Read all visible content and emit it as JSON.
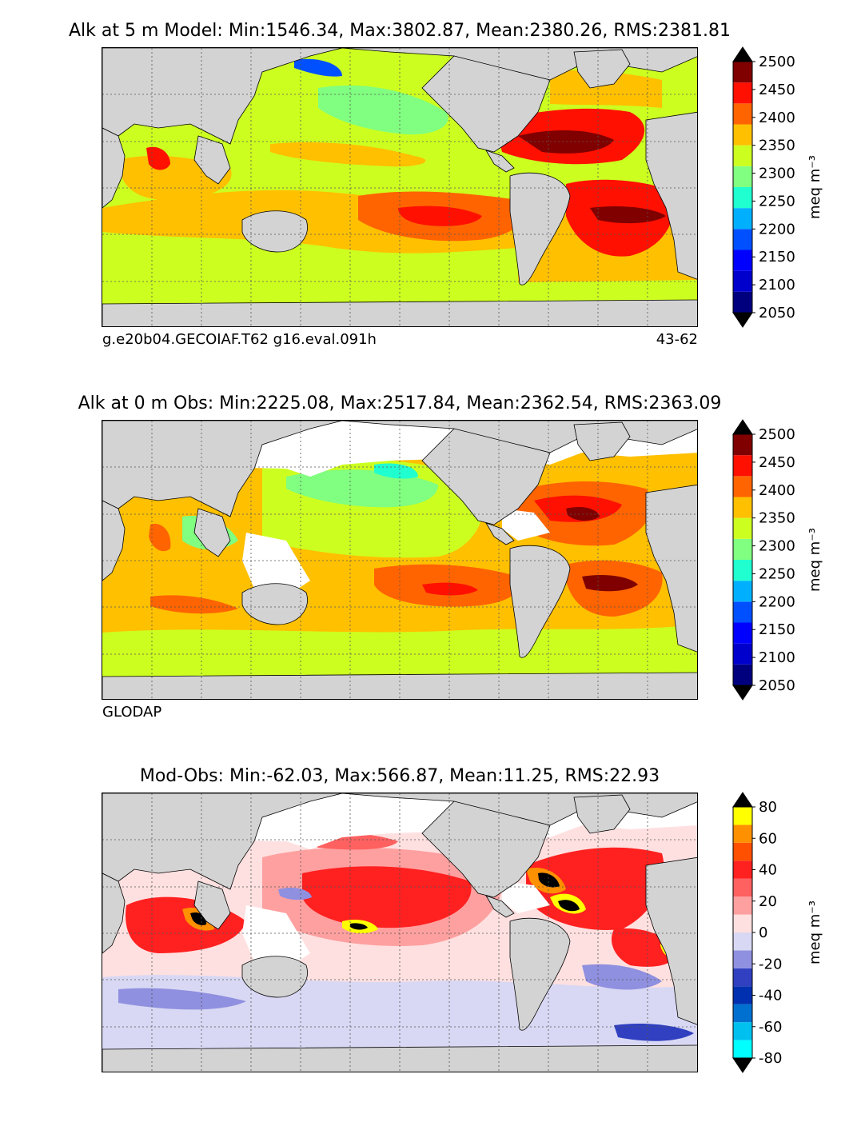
{
  "panels": [
    {
      "title": "Alk at 5 m Model: Min:1546.34, Max:3802.87, Mean:2380.26, RMS:2381.81",
      "footer_left": "g.e20b04.GECOIAF.T62 g16.eval.091h",
      "footer_right": "43-62",
      "colorbar": {
        "unit": "meq m⁻³",
        "ticks": [
          "2050",
          "2100",
          "2150",
          "2200",
          "2250",
          "2300",
          "2350",
          "2400",
          "2450",
          "2500"
        ],
        "colors": [
          "#00007f",
          "#0000cc",
          "#0000ff",
          "#0050ff",
          "#00b0ff",
          "#20ffd0",
          "#80ff80",
          "#ccff20",
          "#ffc000",
          "#ff6400",
          "#ff1000",
          "#800000"
        ],
        "extend_low": "#000000",
        "extend_high": "#000000"
      }
    },
    {
      "title": "Alk at 0 m Obs: Min:2225.08, Max:2517.84, Mean:2362.54, RMS:2363.09",
      "footer_left": "GLODAP",
      "footer_right": "",
      "colorbar": {
        "unit": "meq m⁻³",
        "ticks": [
          "2050",
          "2100",
          "2150",
          "2200",
          "2250",
          "2300",
          "2350",
          "2400",
          "2450",
          "2500"
        ],
        "colors": [
          "#00007f",
          "#0000cc",
          "#0000ff",
          "#0050ff",
          "#00b0ff",
          "#20ffd0",
          "#80ff80",
          "#ccff20",
          "#ffc000",
          "#ff6400",
          "#ff1000",
          "#800000"
        ],
        "extend_low": "#000000",
        "extend_high": "#000000"
      }
    },
    {
      "title": "Mod-Obs: Min:-62.03, Max:566.87, Mean:11.25, RMS:22.93",
      "footer_left": "",
      "footer_right": "",
      "colorbar": {
        "unit": "meq m⁻³",
        "ticks": [
          "-80",
          "-60",
          "-40",
          "-20",
          "0",
          "20",
          "40",
          "60",
          "80"
        ],
        "colors": [
          "#00ffff",
          "#00c0f0",
          "#0070d0",
          "#0030b0",
          "#3040c0",
          "#9090e0",
          "#d8d8f4",
          "#ffe0e0",
          "#ffa0a0",
          "#ff6060",
          "#ff2020",
          "#ff5000",
          "#ff9000",
          "#ffff00"
        ],
        "extend_low": "#000000",
        "extend_high": "#000000"
      }
    }
  ],
  "map_colors": {
    "land": "#d3d3d3",
    "mask": "#ffffff",
    "grid": "#555555"
  }
}
